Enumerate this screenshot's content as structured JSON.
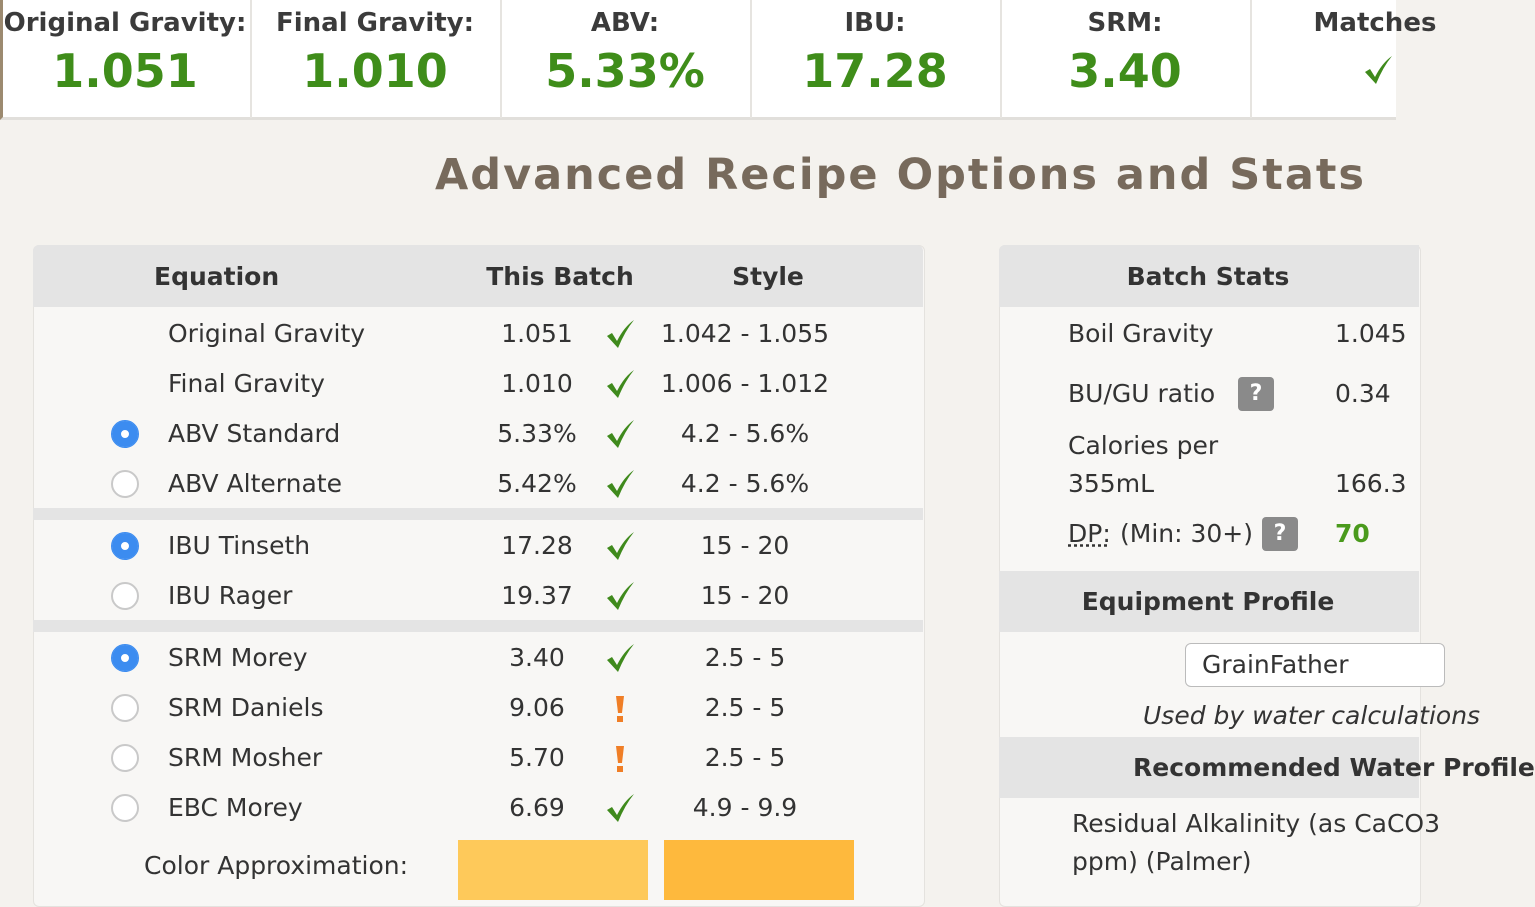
{
  "stats_bar": [
    {
      "label": "Original Gravity:",
      "value": "1.051"
    },
    {
      "label": "Final Gravity:",
      "value": "1.010"
    },
    {
      "label": "ABV:",
      "value": "5.33%"
    },
    {
      "label": "IBU:",
      "value": "17.28"
    },
    {
      "label": "SRM:",
      "value": "3.40"
    },
    {
      "label": "Matches"
    }
  ],
  "title": "Advanced Recipe Options and Stats",
  "equation_table": {
    "headers": [
      "Equation",
      "This Batch",
      "Style"
    ],
    "groups": [
      [
        {
          "name": "Original Gravity",
          "batch": "1.051",
          "status": "ok",
          "style": "1.042 - 1.055"
        },
        {
          "name": "Final Gravity",
          "batch": "1.010",
          "status": "ok",
          "style": "1.006 - 1.012"
        },
        {
          "name": "ABV Standard",
          "radio": true,
          "batch": "5.33%",
          "status": "ok",
          "style": "4.2 - 5.6%"
        },
        {
          "name": "ABV Alternate",
          "radio": false,
          "batch": "5.42%",
          "status": "ok",
          "style": "4.2 - 5.6%"
        }
      ],
      [
        {
          "name": "IBU Tinseth",
          "radio": true,
          "batch": "17.28",
          "status": "ok",
          "style": "15 - 20"
        },
        {
          "name": "IBU Rager",
          "radio": false,
          "batch": "19.37",
          "status": "ok",
          "style": "15 - 20"
        }
      ],
      [
        {
          "name": "SRM Morey",
          "radio": true,
          "batch": "3.40",
          "status": "ok",
          "style": "2.5 - 5"
        },
        {
          "name": "SRM Daniels",
          "radio": false,
          "batch": "9.06",
          "status": "warn",
          "style": "2.5 - 5"
        },
        {
          "name": "SRM Mosher",
          "radio": false,
          "batch": "5.70",
          "status": "warn",
          "style": "2.5 - 5"
        },
        {
          "name": "EBC Morey",
          "radio": false,
          "batch": "6.69",
          "status": "ok",
          "style": "4.9 - 9.9"
        }
      ]
    ],
    "color_approximation": {
      "label": "Color Approximation:",
      "colors": [
        "#fec95a",
        "#feb93d"
      ]
    }
  },
  "batch_stats": {
    "header": "Batch Stats",
    "rows": [
      {
        "label": "Boil Gravity",
        "value": "1.045"
      },
      {
        "label": "BU/GU ratio",
        "help": "?",
        "value": "0.34"
      },
      {
        "label": "Calories per",
        "label2": "355mL",
        "value": "166.3"
      },
      {
        "label": "DP:",
        "note": "(Min: 30+)",
        "help": "?",
        "value": "70",
        "value_color": "#4a9a1c"
      }
    ],
    "equipment_profile": {
      "header": "Equipment Profile",
      "select": "GrainFather",
      "note": "Used by water calculations"
    },
    "water": {
      "header": "Recommended Water Profile",
      "line1": "Residual Alkalinity (as CaCO3",
      "line2": "ppm) (Palmer)"
    }
  }
}
